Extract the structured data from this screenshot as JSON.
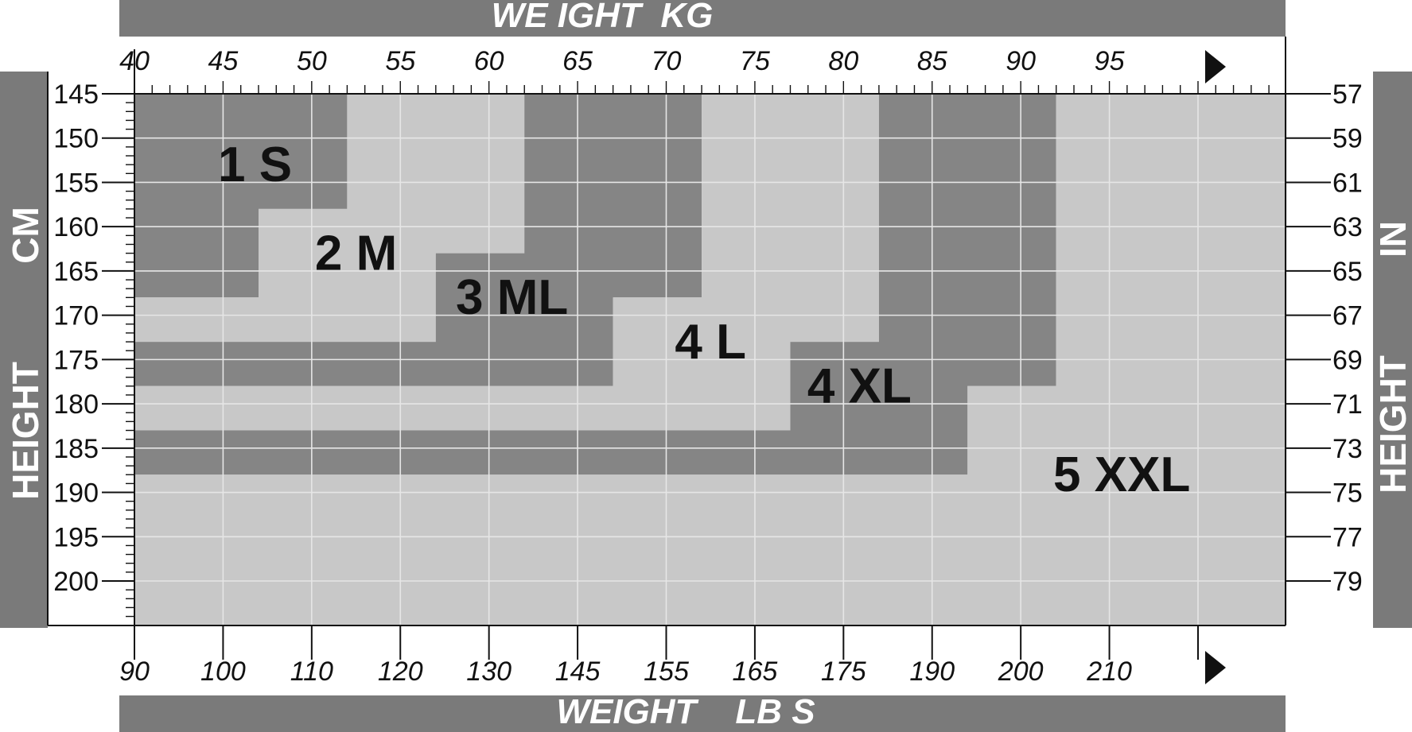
{
  "colors": {
    "banner": "#7a7a7a",
    "dark_zone": "#858585",
    "light_zone": "#c8c8c8",
    "grid": "#e6e6e6",
    "axis": "#111111"
  },
  "banners": {
    "top": "WE IGHT  KG",
    "bottom": "WEIGHT    LB S",
    "left_primary": "HEIGHT",
    "left_secondary": "CM",
    "right_primary": "HEIGHT",
    "right_secondary": "IN"
  },
  "icons": {
    "top_arrow": "play-triangle",
    "bottom_arrow": "play-triangle"
  },
  "chart_data": {
    "type": "heatmap",
    "title": "",
    "x_axis_top": {
      "label": "WE IGHT  KG",
      "ticks": [
        "40",
        "45",
        "50",
        "55",
        "60",
        "65",
        "70",
        "75",
        "80",
        "85",
        "90",
        "95"
      ],
      "range": [
        40,
        105
      ]
    },
    "x_axis_bottom": {
      "label": "WEIGHT    LB S",
      "ticks": [
        "90",
        "100",
        "110",
        "120",
        "130",
        "145",
        "155",
        "165",
        "175",
        "190",
        "200",
        "210"
      ]
    },
    "y_axis_left": {
      "label": "HEIGHT CM",
      "ticks": [
        "145",
        "150",
        "155",
        "160",
        "165",
        "170",
        "175",
        "180",
        "185",
        "190",
        "195",
        "200"
      ],
      "range": [
        145,
        205
      ]
    },
    "y_axis_right": {
      "label": "HEIGHT IN",
      "ticks": [
        "57",
        "59",
        "61",
        "63",
        "65",
        "67",
        "69",
        "71",
        "73",
        "75",
        "77",
        "79"
      ]
    },
    "grid": true,
    "zones": [
      {
        "name": "1 S",
        "shade": "dark",
        "boundary_kg_cm": [
          [
            40,
            145
          ],
          [
            52,
            145
          ],
          [
            52,
            158
          ],
          [
            47,
            158
          ],
          [
            47,
            168
          ],
          [
            40,
            168
          ]
        ]
      },
      {
        "name": "2 M",
        "shade": "light",
        "boundary_kg_cm": [
          [
            52,
            145
          ],
          [
            62,
            145
          ],
          [
            62,
            163
          ],
          [
            57,
            163
          ],
          [
            57,
            173
          ],
          [
            40,
            173
          ],
          [
            40,
            168
          ],
          [
            47,
            168
          ],
          [
            47,
            158
          ],
          [
            52,
            158
          ]
        ]
      },
      {
        "name": "3 ML",
        "shade": "dark",
        "boundary_kg_cm": [
          [
            62,
            145
          ],
          [
            72,
            145
          ],
          [
            72,
            168
          ],
          [
            67,
            168
          ],
          [
            67,
            178
          ],
          [
            40,
            178
          ],
          [
            40,
            173
          ],
          [
            57,
            173
          ],
          [
            57,
            163
          ],
          [
            62,
            163
          ]
        ]
      },
      {
        "name": "4 L",
        "shade": "light",
        "boundary_kg_cm": [
          [
            72,
            145
          ],
          [
            82,
            145
          ],
          [
            82,
            173
          ],
          [
            77,
            173
          ],
          [
            77,
            183
          ],
          [
            40,
            183
          ],
          [
            40,
            178
          ],
          [
            67,
            178
          ],
          [
            67,
            168
          ],
          [
            72,
            168
          ]
        ]
      },
      {
        "name": "4 XL",
        "shade": "dark",
        "boundary_kg_cm": [
          [
            82,
            145
          ],
          [
            92,
            145
          ],
          [
            92,
            178
          ],
          [
            87,
            178
          ],
          [
            87,
            188
          ],
          [
            40,
            188
          ],
          [
            40,
            183
          ],
          [
            77,
            183
          ],
          [
            77,
            173
          ],
          [
            82,
            173
          ]
        ]
      },
      {
        "name": "5 XXL",
        "shade": "light",
        "boundary_kg_cm": [
          [
            92,
            145
          ],
          [
            105,
            145
          ],
          [
            105,
            205
          ],
          [
            40,
            205
          ],
          [
            40,
            188
          ],
          [
            87,
            188
          ],
          [
            87,
            178
          ],
          [
            92,
            178
          ]
        ]
      }
    ],
    "zone_labels": [
      {
        "text": "1 S",
        "kg": 46.8,
        "cm": 152.9
      },
      {
        "text": "2 M",
        "kg": 52.5,
        "cm": 162.9
      },
      {
        "text": "3 ML",
        "kg": 61.3,
        "cm": 167.9
      },
      {
        "text": "4 L",
        "kg": 72.5,
        "cm": 172.9
      },
      {
        "text": "4 XL",
        "kg": 80.9,
        "cm": 177.9
      },
      {
        "text": "5 XXL",
        "kg": 95.7,
        "cm": 187.9
      }
    ]
  }
}
